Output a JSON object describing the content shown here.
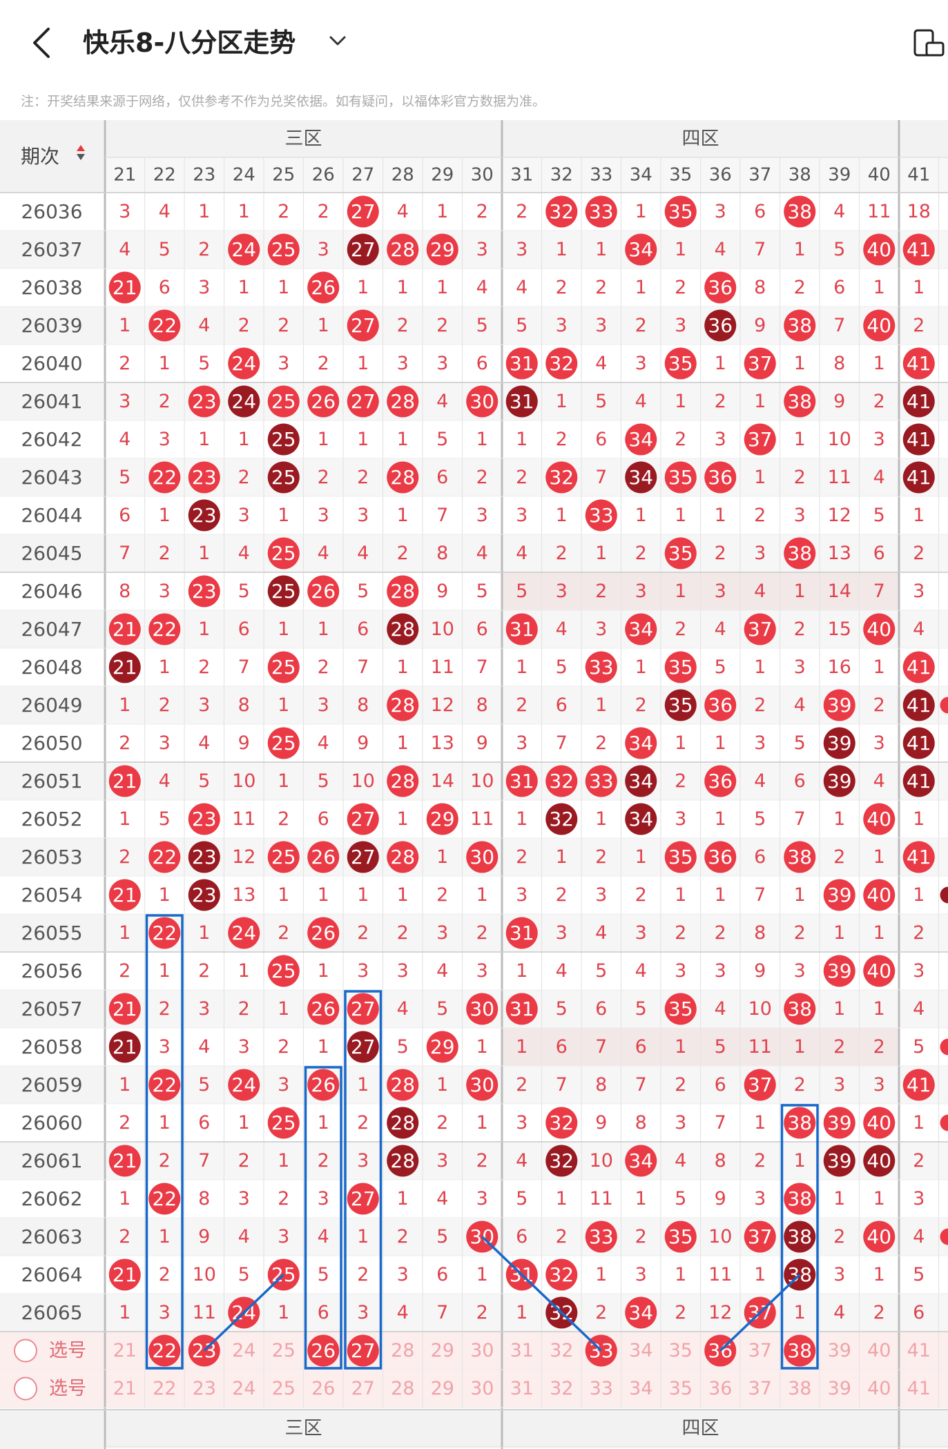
{
  "header": {
    "title": "快乐8-八分区走势"
  },
  "notice": "注：开奖结果来源于网络，仅供参考不作为兑奖依据。如有疑问，以福体彩官方数据为准。",
  "table": {
    "period_label": "期次",
    "zones": [
      {
        "name": "三区",
        "start": 21
      },
      {
        "name": "四区",
        "start": 31
      }
    ],
    "columns": [
      21,
      22,
      23,
      24,
      25,
      26,
      27,
      28,
      29,
      30,
      31,
      32,
      33,
      34,
      35,
      36,
      37,
      38,
      39,
      40,
      41
    ],
    "rows": [
      {
        "period": "26036",
        "cells": [
          "3",
          "4",
          "1",
          "1",
          "2",
          "2",
          "27",
          "4",
          "1",
          "2",
          "2",
          "32",
          "33",
          "1",
          "35",
          "3",
          "6",
          "38",
          "4",
          "11",
          "18"
        ]
      },
      {
        "period": "26037",
        "cells": [
          "4",
          "5",
          "2",
          "24",
          "25",
          "3",
          "27",
          "28",
          "29",
          "3",
          "3",
          "1",
          "1",
          "34",
          "1",
          "4",
          "7",
          "1",
          "5",
          "40",
          "41"
        ]
      },
      {
        "period": "26038",
        "cells": [
          "21",
          "6",
          "3",
          "1",
          "1",
          "26",
          "1",
          "1",
          "1",
          "4",
          "4",
          "2",
          "2",
          "1",
          "2",
          "36",
          "8",
          "2",
          "6",
          "1",
          "1"
        ]
      },
      {
        "period": "26039",
        "cells": [
          "1",
          "22",
          "4",
          "2",
          "2",
          "1",
          "27",
          "2",
          "2",
          "5",
          "5",
          "3",
          "3",
          "2",
          "3",
          "36",
          "9",
          "38",
          "7",
          "40",
          "2"
        ]
      },
      {
        "period": "26040",
        "cells": [
          "2",
          "1",
          "5",
          "24",
          "3",
          "2",
          "1",
          "3",
          "3",
          "6",
          "31",
          "32",
          "4",
          "3",
          "35",
          "1",
          "37",
          "1",
          "8",
          "1",
          "41"
        ]
      },
      {
        "period": "26041",
        "cells": [
          "3",
          "2",
          "23",
          "24",
          "25",
          "26",
          "27",
          "28",
          "4",
          "30",
          "31",
          "1",
          "5",
          "4",
          "1",
          "2",
          "1",
          "38",
          "9",
          "2",
          "41"
        ]
      },
      {
        "period": "26042",
        "cells": [
          "4",
          "3",
          "1",
          "1",
          "25",
          "1",
          "1",
          "1",
          "5",
          "1",
          "1",
          "2",
          "6",
          "34",
          "2",
          "3",
          "37",
          "1",
          "10",
          "3",
          "41"
        ]
      },
      {
        "period": "26043",
        "cells": [
          "5",
          "22",
          "23",
          "2",
          "25",
          "2",
          "2",
          "28",
          "6",
          "2",
          "2",
          "32",
          "7",
          "34",
          "35",
          "36",
          "1",
          "2",
          "11",
          "4",
          "41"
        ]
      },
      {
        "period": "26044",
        "cells": [
          "6",
          "1",
          "23",
          "3",
          "1",
          "3",
          "3",
          "1",
          "7",
          "3",
          "3",
          "1",
          "33",
          "1",
          "1",
          "1",
          "2",
          "3",
          "12",
          "5",
          "1"
        ]
      },
      {
        "period": "26045",
        "cells": [
          "7",
          "2",
          "1",
          "4",
          "25",
          "4",
          "4",
          "2",
          "8",
          "4",
          "4",
          "2",
          "1",
          "2",
          "35",
          "2",
          "3",
          "38",
          "13",
          "6",
          "2"
        ]
      },
      {
        "period": "26046",
        "cells": [
          "8",
          "3",
          "23",
          "5",
          "25",
          "26",
          "5",
          "28",
          "9",
          "5",
          "5",
          "3",
          "2",
          "3",
          "1",
          "3",
          "4",
          "1",
          "14",
          "7",
          "3"
        ]
      },
      {
        "period": "26047",
        "cells": [
          "21",
          "22",
          "1",
          "6",
          "1",
          "1",
          "6",
          "28",
          "10",
          "6",
          "31",
          "4",
          "3",
          "34",
          "2",
          "4",
          "37",
          "2",
          "15",
          "40",
          "4"
        ]
      },
      {
        "period": "26048",
        "cells": [
          "21",
          "1",
          "2",
          "7",
          "25",
          "2",
          "7",
          "1",
          "11",
          "7",
          "1",
          "5",
          "33",
          "1",
          "35",
          "5",
          "1",
          "3",
          "16",
          "1",
          "41"
        ]
      },
      {
        "period": "26049",
        "cells": [
          "1",
          "2",
          "3",
          "8",
          "1",
          "3",
          "8",
          "28",
          "12",
          "8",
          "2",
          "6",
          "1",
          "2",
          "35",
          "36",
          "2",
          "4",
          "39",
          "2",
          "41"
        ]
      },
      {
        "period": "26050",
        "cells": [
          "2",
          "3",
          "4",
          "9",
          "25",
          "4",
          "9",
          "1",
          "13",
          "9",
          "3",
          "7",
          "2",
          "34",
          "1",
          "1",
          "3",
          "5",
          "39",
          "3",
          "41"
        ]
      },
      {
        "period": "26051",
        "cells": [
          "21",
          "4",
          "5",
          "10",
          "1",
          "5",
          "10",
          "28",
          "14",
          "10",
          "31",
          "32",
          "33",
          "34",
          "2",
          "36",
          "4",
          "6",
          "39",
          "4",
          "41"
        ]
      },
      {
        "period": "26052",
        "cells": [
          "1",
          "5",
          "23",
          "11",
          "2",
          "6",
          "27",
          "1",
          "29",
          "11",
          "1",
          "32",
          "1",
          "34",
          "3",
          "1",
          "5",
          "7",
          "1",
          "40",
          "1"
        ]
      },
      {
        "period": "26053",
        "cells": [
          "2",
          "22",
          "23",
          "12",
          "25",
          "26",
          "27",
          "28",
          "1",
          "30",
          "2",
          "1",
          "2",
          "1",
          "35",
          "36",
          "6",
          "38",
          "2",
          "1",
          "41"
        ]
      },
      {
        "period": "26054",
        "cells": [
          "21",
          "1",
          "23",
          "13",
          "1",
          "1",
          "1",
          "1",
          "2",
          "1",
          "3",
          "2",
          "3",
          "2",
          "1",
          "1",
          "7",
          "1",
          "39",
          "40",
          "1"
        ]
      },
      {
        "period": "26055",
        "cells": [
          "1",
          "22",
          "1",
          "24",
          "2",
          "26",
          "2",
          "2",
          "3",
          "2",
          "31",
          "3",
          "4",
          "3",
          "2",
          "2",
          "8",
          "2",
          "1",
          "1",
          "2"
        ]
      },
      {
        "period": "26056",
        "cells": [
          "2",
          "1",
          "2",
          "1",
          "25",
          "1",
          "3",
          "3",
          "4",
          "3",
          "1",
          "4",
          "5",
          "4",
          "3",
          "3",
          "9",
          "3",
          "39",
          "40",
          "3"
        ]
      },
      {
        "period": "26057",
        "cells": [
          "21",
          "2",
          "3",
          "2",
          "1",
          "26",
          "27",
          "4",
          "5",
          "30",
          "31",
          "5",
          "6",
          "5",
          "35",
          "4",
          "10",
          "38",
          "1",
          "1",
          "4"
        ]
      },
      {
        "period": "26058",
        "cells": [
          "21",
          "3",
          "4",
          "3",
          "2",
          "1",
          "27",
          "5",
          "29",
          "1",
          "1",
          "6",
          "7",
          "6",
          "1",
          "5",
          "11",
          "1",
          "2",
          "2",
          "5"
        ]
      },
      {
        "period": "26059",
        "cells": [
          "1",
          "22",
          "5",
          "24",
          "3",
          "26",
          "1",
          "28",
          "1",
          "30",
          "2",
          "7",
          "8",
          "7",
          "2",
          "6",
          "37",
          "2",
          "3",
          "3",
          "41"
        ]
      },
      {
        "period": "26060",
        "cells": [
          "2",
          "1",
          "6",
          "1",
          "25",
          "1",
          "2",
          "28",
          "2",
          "1",
          "3",
          "32",
          "9",
          "8",
          "3",
          "7",
          "1",
          "38",
          "39",
          "40",
          "1"
        ]
      },
      {
        "period": "26061",
        "cells": [
          "21",
          "2",
          "7",
          "2",
          "1",
          "2",
          "3",
          "28",
          "3",
          "2",
          "4",
          "32",
          "10",
          "34",
          "4",
          "8",
          "2",
          "1",
          "39",
          "40",
          "2"
        ]
      },
      {
        "period": "26062",
        "cells": [
          "1",
          "22",
          "8",
          "3",
          "2",
          "3",
          "27",
          "1",
          "4",
          "3",
          "5",
          "1",
          "11",
          "1",
          "5",
          "9",
          "3",
          "38",
          "1",
          "1",
          "3"
        ]
      },
      {
        "period": "26063",
        "cells": [
          "2",
          "1",
          "9",
          "4",
          "3",
          "4",
          "1",
          "2",
          "5",
          "30",
          "6",
          "2",
          "33",
          "2",
          "35",
          "10",
          "37",
          "38",
          "2",
          "40",
          "4"
        ]
      },
      {
        "period": "26064",
        "cells": [
          "21",
          "2",
          "10",
          "5",
          "25",
          "5",
          "2",
          "3",
          "6",
          "1",
          "31",
          "32",
          "1",
          "3",
          "1",
          "11",
          "1",
          "38",
          "3",
          "1",
          "5"
        ]
      },
      {
        "period": "26065",
        "cells": [
          "1",
          "3",
          "11",
          "24",
          "1",
          "6",
          "3",
          "4",
          "7",
          "2",
          "1",
          "32",
          "2",
          "34",
          "2",
          "12",
          "37",
          "1",
          "4",
          "2",
          "6"
        ]
      }
    ],
    "selection_rows": [
      {
        "label": "选号",
        "selected": [
          22,
          23,
          26,
          27,
          33,
          36,
          38
        ]
      },
      {
        "label": "选号",
        "selected": []
      }
    ]
  }
}
